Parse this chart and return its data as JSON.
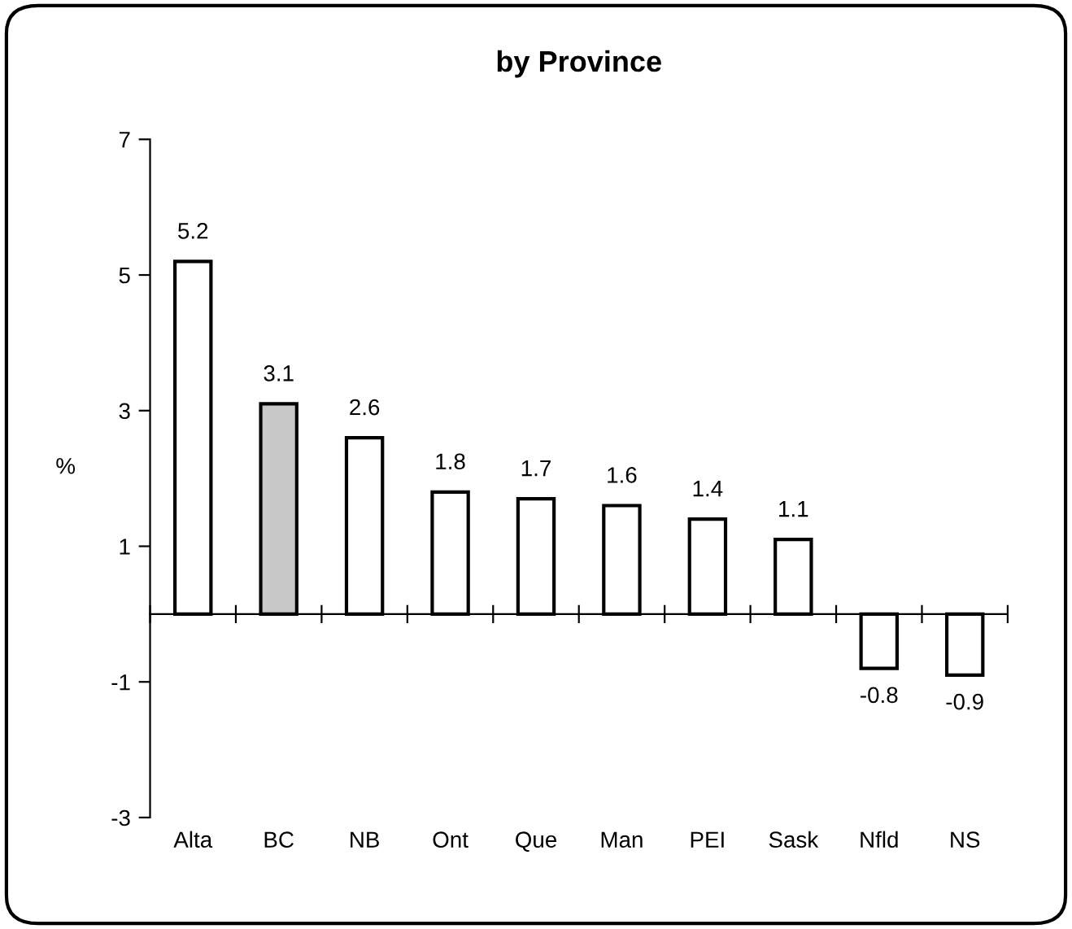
{
  "chart_data": {
    "type": "bar",
    "title": "by Province",
    "ylabel": "%",
    "categories": [
      "Alta",
      "BC",
      "NB",
      "Ont",
      "Que",
      "Man",
      "PEI",
      "Sask",
      "Nfld",
      "NS"
    ],
    "values": [
      5.2,
      3.1,
      2.6,
      1.8,
      1.7,
      1.6,
      1.4,
      1.1,
      -0.8,
      -0.9
    ],
    "colors": [
      "#ffffff",
      "#c8c8c8",
      "#ffffff",
      "#ffffff",
      "#ffffff",
      "#ffffff",
      "#ffffff",
      "#ffffff",
      "#ffffff",
      "#ffffff"
    ],
    "ylim": [
      -3,
      7
    ],
    "yticks": [
      -3,
      -1,
      1,
      3,
      5,
      7
    ],
    "grid": false,
    "legend": false,
    "data_labels": true
  }
}
